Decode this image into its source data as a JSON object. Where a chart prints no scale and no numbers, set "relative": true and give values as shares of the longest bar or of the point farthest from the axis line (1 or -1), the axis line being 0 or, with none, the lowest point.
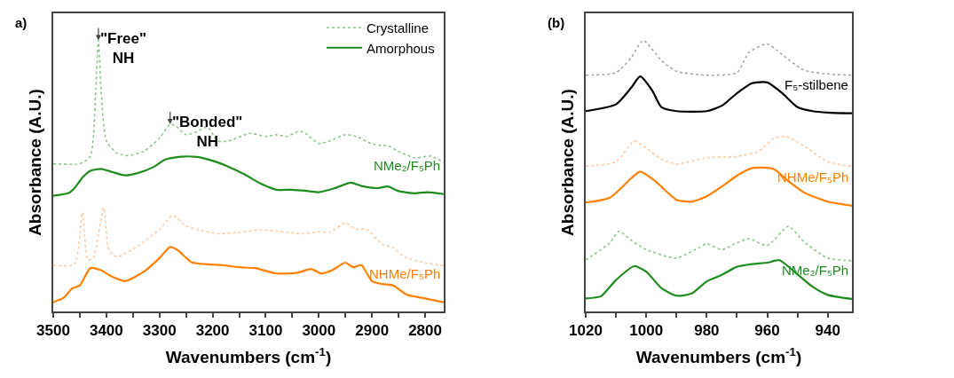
{
  "chart_data": [
    {
      "type": "line",
      "relative": true,
      "xlabel": "Wavenumbers (cm$^{-1}$)",
      "ylabel": "Absorbance (A.U.)",
      "xlim": [
        3500,
        2765
      ],
      "xticks": [
        3500,
        {
          "value": 3450,
          "label": null
        },
        3400,
        {
          "value": 3350,
          "label": null
        },
        3300,
        {
          "value": 3250,
          "label": null
        },
        3200,
        {
          "value": 3150,
          "label": null
        },
        3100,
        {
          "value": 3050,
          "label": null
        },
        3000,
        {
          "value": 2950,
          "label": null
        },
        2900,
        {
          "value": 2850,
          "label": null
        },
        2800
      ],
      "grid": false,
      "legend": "top right",
      "marker": "none",
      "tick_labels": "x",
      "annotations": [
        "a)",
        {
          "text": "\"Free\"\nNH",
          "x": 3415,
          "y": 1
        },
        {
          "text": "\"Bonded\"\nNH",
          "x": 3280,
          "y": 0.691
        },
        "NMe₂/F₅Ph",
        "NHMe/F₅Ph"
      ],
      "series": [
        {
          "name": "Crystalline",
          "color": "#8cc48c",
          "line_style": "dotted",
          "x": [
            3500,
            3450,
            3430,
            3420,
            3415,
            3410,
            3400,
            3380,
            3360,
            3330,
            3300,
            3280,
            3270,
            3250,
            3230,
            3210,
            3190,
            3170,
            3130,
            3100,
            3080,
            3060,
            3040,
            3030,
            3000,
            2980,
            2950,
            2930,
            2900,
            2880,
            2870,
            2850,
            2820,
            2790,
            2765
          ],
          "values": [
            0.545,
            0.545,
            0.573,
            0.82,
            1,
            0.82,
            0.629,
            0.584,
            0.575,
            0.59,
            0.64,
            0.691,
            0.685,
            0.652,
            0.663,
            0.68,
            0.629,
            0.629,
            0.657,
            0.646,
            0.652,
            0.646,
            0.663,
            0.663,
            0.62,
            0.629,
            0.652,
            0.646,
            0.618,
            0.612,
            0.612,
            0.59,
            0.567,
            0.573,
            0.551
          ]
        },
        {
          "name": "Amorphous",
          "color": "#1e8c1e",
          "line_style": "solid",
          "x": [
            3500,
            3470,
            3460,
            3445,
            3430,
            3410,
            3390,
            3365,
            3340,
            3310,
            3290,
            3260,
            3230,
            3200,
            3170,
            3140,
            3110,
            3080,
            3050,
            3020,
            3000,
            2970,
            2940,
            2920,
            2890,
            2870,
            2850,
            2820,
            2795,
            2765
          ],
          "values": [
            0.427,
            0.438,
            0.455,
            0.494,
            0.519,
            0.526,
            0.515,
            0.502,
            0.511,
            0.534,
            0.56,
            0.571,
            0.57,
            0.556,
            0.534,
            0.506,
            0.472,
            0.449,
            0.449,
            0.444,
            0.44,
            0.455,
            0.475,
            0.463,
            0.455,
            0.461,
            0.444,
            0.436,
            0.44,
            0.433
          ]
        },
        {
          "color": "#ffc9a0",
          "line_style": "dotted",
          "x": [
            3500,
            3460,
            3445,
            3435,
            3425,
            3405,
            3395,
            3380,
            3340,
            3300,
            3275,
            3250,
            3220,
            3190,
            3150,
            3110,
            3060,
            3030,
            3000,
            2980,
            2950,
            2930,
            2910,
            2880,
            2860,
            2840,
            2800,
            2765
          ],
          "values": [
            0.171,
            0.174,
            0.365,
            0.191,
            0.197,
            0.382,
            0.225,
            0.202,
            0.242,
            0.303,
            0.354,
            0.315,
            0.298,
            0.287,
            0.292,
            0.301,
            0.292,
            0.287,
            0.294,
            0.292,
            0.326,
            0.303,
            0.303,
            0.247,
            0.236,
            0.202,
            0.18,
            0.169
          ]
        },
        {
          "color": "#ff8000",
          "line_style": "solid",
          "x": [
            3500,
            3480,
            3465,
            3450,
            3430,
            3410,
            3390,
            3365,
            3330,
            3300,
            3280,
            3265,
            3240,
            3210,
            3180,
            3150,
            3120,
            3080,
            3040,
            3015,
            2995,
            2975,
            2950,
            2935,
            2920,
            2900,
            2880,
            2860,
            2835,
            2800,
            2765
          ],
          "values": [
            0.034,
            0.051,
            0.084,
            0.096,
            0.16,
            0.152,
            0.129,
            0.112,
            0.146,
            0.197,
            0.238,
            0.225,
            0.182,
            0.174,
            0.171,
            0.163,
            0.16,
            0.14,
            0.143,
            0.157,
            0.14,
            0.152,
            0.18,
            0.163,
            0.171,
            0.112,
            0.101,
            0.096,
            0.062,
            0.048,
            0.034
          ]
        }
      ]
    },
    {
      "type": "line",
      "relative": true,
      "xlabel": "Wavenumbers (cm$^{-1}$)",
      "ylabel": "Absorbance (A.U.)",
      "xlim": [
        1020,
        932
      ],
      "xticks": [
        1020,
        {
          "value": 1010,
          "label": null
        },
        1000,
        {
          "value": 990,
          "label": null
        },
        980,
        {
          "value": 970,
          "label": null
        },
        960,
        {
          "value": 950,
          "label": null
        },
        940
      ],
      "grid": false,
      "marker": "none",
      "tick_labels": "x",
      "annotations": [
        "(b)",
        "F₅-stilbene",
        "NHMe/F₅Ph",
        "NMe₂/F₅Ph"
      ],
      "series": [
        {
          "color": "#a8a8a8",
          "line_style": "dotted",
          "x": [
            1020,
            1010,
            1005,
            1001,
            995,
            990,
            980,
            970,
            966,
            960,
            955,
            948,
            940,
            932
          ],
          "values": [
            0.872,
            0.881,
            0.936,
            1,
            0.926,
            0.886,
            0.872,
            0.881,
            0.956,
            0.987,
            0.947,
            0.891,
            0.876,
            0.872
          ]
        },
        {
          "color": "#000000",
          "line_style": "solid",
          "x": [
            1020,
            1010,
            1005,
            1002,
            998,
            995,
            990,
            980,
            975,
            970,
            965,
            960,
            955,
            950,
            945,
            940,
            932
          ],
          "values": [
            0.739,
            0.764,
            0.825,
            0.867,
            0.815,
            0.754,
            0.739,
            0.739,
            0.759,
            0.805,
            0.842,
            0.845,
            0.805,
            0.754,
            0.739,
            0.734,
            0.731
          ]
        },
        {
          "color": "#ffc9a0",
          "line_style": "dotted",
          "x": [
            1020,
            1010,
            1004,
            1000,
            995,
            990,
            980,
            970,
            963,
            958,
            954,
            948,
            940,
            932
          ],
          "values": [
            0.536,
            0.552,
            0.628,
            0.602,
            0.562,
            0.544,
            0.567,
            0.572,
            0.59,
            0.638,
            0.646,
            0.612,
            0.552,
            0.536
          ]
        },
        {
          "color": "#ff8000",
          "line_style": "solid",
          "x": [
            1020,
            1012,
            1005,
            1002,
            997,
            990,
            985,
            980,
            975,
            970,
            965,
            958,
            953,
            948,
            940,
            932
          ],
          "values": [
            0.402,
            0.42,
            0.491,
            0.516,
            0.481,
            0.412,
            0.405,
            0.425,
            0.461,
            0.501,
            0.529,
            0.526,
            0.481,
            0.44,
            0.405,
            0.39
          ]
        },
        {
          "color": "#8cc48c",
          "line_style": "dotted",
          "x": [
            1020,
            1012,
            1009,
            1005,
            1000,
            990,
            983,
            980,
            975,
            970,
            966,
            960,
            953,
            948,
            940,
            932
          ],
          "values": [
            0.19,
            0.253,
            0.296,
            0.263,
            0.228,
            0.197,
            0.233,
            0.25,
            0.228,
            0.253,
            0.268,
            0.243,
            0.314,
            0.258,
            0.197,
            0.187
          ]
        },
        {
          "color": "#1e8c1e",
          "line_style": "solid",
          "x": [
            1020,
            1015,
            1010,
            1004,
            1000,
            995,
            990,
            985,
            980,
            975,
            970,
            965,
            960,
            956,
            950,
            945,
            940,
            932
          ],
          "values": [
            0.048,
            0.056,
            0.116,
            0.167,
            0.147,
            0.086,
            0.058,
            0.066,
            0.111,
            0.135,
            0.165,
            0.175,
            0.18,
            0.189,
            0.137,
            0.091,
            0.061,
            0.046
          ]
        }
      ]
    }
  ]
}
